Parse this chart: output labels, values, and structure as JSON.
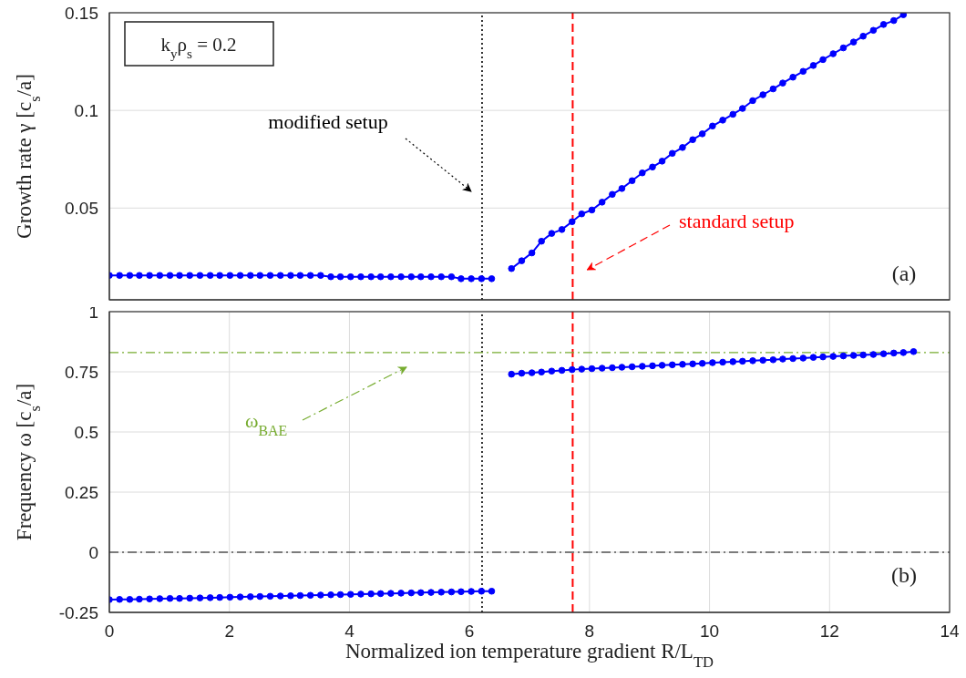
{
  "chart_data": [
    {
      "type": "line",
      "ylabel": "Growth rate γ [c$_{s}$/a]",
      "xlim": [
        0,
        14
      ],
      "xticks": [
        0,
        2,
        4,
        6,
        8,
        10,
        12,
        14
      ],
      "ylim": [
        0.003,
        0.15
      ],
      "yticks": [
        0.05,
        0.1,
        0.15
      ],
      "tick_labels": "y",
      "grid": true,
      "marker": "circle",
      "series": [
        {
          "color": "#0000ff",
          "x": [
            0,
            0.17,
            0.34,
            0.5,
            0.67,
            0.84,
            1.01,
            1.17,
            1.34,
            1.51,
            1.68,
            1.84,
            2.01,
            2.18,
            2.35,
            2.51,
            2.68,
            2.85,
            3.02,
            3.18,
            3.35,
            3.52,
            3.69,
            3.85,
            4.02,
            4.19,
            4.36,
            4.52,
            4.69,
            4.86,
            5.03,
            5.19,
            5.36,
            5.53,
            5.7,
            5.86,
            6.03,
            6.2,
            6.37
          ],
          "values": [
            0.0155,
            0.0155,
            0.0155,
            0.0155,
            0.0155,
            0.0155,
            0.0155,
            0.0155,
            0.0155,
            0.0155,
            0.0155,
            0.0155,
            0.0155,
            0.0155,
            0.0155,
            0.0155,
            0.0155,
            0.0155,
            0.0155,
            0.0155,
            0.0155,
            0.0155,
            0.0148,
            0.0148,
            0.0148,
            0.0148,
            0.0148,
            0.0148,
            0.0148,
            0.0148,
            0.0148,
            0.0148,
            0.0148,
            0.0148,
            0.0148,
            0.0138,
            0.0138,
            0.0138,
            0.0138
          ]
        },
        {
          "color": "#0000ff",
          "x": [
            6.7,
            6.87,
            7.04,
            7.2,
            7.37,
            7.54,
            7.71,
            7.87,
            8.04,
            8.21,
            8.38,
            8.54,
            8.71,
            8.88,
            9.05,
            9.21,
            9.38,
            9.55,
            9.72,
            9.88,
            10.05,
            10.22,
            10.39,
            10.55,
            10.72,
            10.89,
            11.06,
            11.22,
            11.39,
            11.56,
            11.73,
            11.89,
            12.06,
            12.23,
            12.4,
            12.56,
            12.73,
            12.9,
            13.07,
            13.23
          ],
          "values": [
            0.019,
            0.023,
            0.027,
            0.033,
            0.037,
            0.039,
            0.043,
            0.047,
            0.049,
            0.053,
            0.057,
            0.06,
            0.064,
            0.068,
            0.071,
            0.074,
            0.078,
            0.081,
            0.085,
            0.088,
            0.092,
            0.095,
            0.098,
            0.101,
            0.105,
            0.108,
            0.111,
            0.114,
            0.117,
            0.12,
            0.123,
            0.126,
            0.129,
            0.132,
            0.135,
            0.138,
            0.141,
            0.144,
            0.146,
            0.149
          ]
        }
      ],
      "ref_lines": [
        {
          "axis": "x",
          "value": 6.21,
          "label": "modified setup",
          "color": "#000000",
          "line_style": "dotted"
        },
        {
          "axis": "x",
          "value": 7.72,
          "label": "standard setup",
          "color": "#ff0000",
          "line_style": "dashed"
        }
      ],
      "annotations": [
        "k$_{y}$ρ$_{s}$ = 0.2",
        "(a)"
      ]
    },
    {
      "type": "line",
      "xlabel": "Normalized ion temperature gradient R/L$_{T}$$_{D}$",
      "ylabel": "Frequency ω [c$_{s}$/a]",
      "xlim": [
        0,
        14
      ],
      "xticks": [
        0,
        2,
        4,
        6,
        8,
        10,
        12,
        14
      ],
      "ylim": [
        -0.25,
        1
      ],
      "yticks": [
        -0.25,
        0,
        0.25,
        0.5,
        0.75,
        1
      ],
      "grid": true,
      "marker": "circle",
      "series": [
        {
          "color": "#0000ff",
          "x": [
            0,
            0.17,
            0.34,
            0.5,
            0.67,
            0.84,
            1.01,
            1.17,
            1.34,
            1.51,
            1.68,
            1.84,
            2.01,
            2.18,
            2.35,
            2.51,
            2.68,
            2.85,
            3.02,
            3.18,
            3.35,
            3.52,
            3.69,
            3.85,
            4.02,
            4.19,
            4.36,
            4.52,
            4.69,
            4.86,
            5.03,
            5.19,
            5.36,
            5.53,
            5.7,
            5.86,
            6.03,
            6.2,
            6.37
          ],
          "values": [
            -0.197,
            -0.196,
            -0.196,
            -0.195,
            -0.194,
            -0.193,
            -0.192,
            -0.192,
            -0.191,
            -0.19,
            -0.189,
            -0.188,
            -0.187,
            -0.186,
            -0.185,
            -0.184,
            -0.183,
            -0.182,
            -0.181,
            -0.18,
            -0.179,
            -0.178,
            -0.177,
            -0.176,
            -0.175,
            -0.174,
            -0.173,
            -0.172,
            -0.171,
            -0.17,
            -0.169,
            -0.168,
            -0.167,
            -0.166,
            -0.165,
            -0.164,
            -0.163,
            -0.162,
            -0.162
          ]
        },
        {
          "color": "#0000ff",
          "x": [
            6.7,
            6.87,
            7.04,
            7.2,
            7.37,
            7.54,
            7.71,
            7.87,
            8.04,
            8.21,
            8.38,
            8.54,
            8.71,
            8.88,
            9.05,
            9.21,
            9.38,
            9.55,
            9.72,
            9.88,
            10.05,
            10.22,
            10.39,
            10.55,
            10.72,
            10.89,
            11.06,
            11.22,
            11.39,
            11.56,
            11.73,
            11.89,
            12.06,
            12.23,
            12.4,
            12.56,
            12.73,
            12.9,
            13.07,
            13.23,
            13.4
          ],
          "values": [
            0.74,
            0.744,
            0.746,
            0.749,
            0.753,
            0.756,
            0.759,
            0.761,
            0.763,
            0.765,
            0.767,
            0.769,
            0.771,
            0.773,
            0.775,
            0.777,
            0.779,
            0.781,
            0.783,
            0.785,
            0.788,
            0.79,
            0.792,
            0.794,
            0.796,
            0.798,
            0.8,
            0.803,
            0.805,
            0.807,
            0.81,
            0.812,
            0.814,
            0.816,
            0.818,
            0.82,
            0.822,
            0.825,
            0.828,
            0.83,
            0.834
          ]
        }
      ],
      "ref_lines": [
        {
          "axis": "x",
          "value": 6.21,
          "color": "#000000",
          "line_style": "dotted"
        },
        {
          "axis": "x",
          "value": 7.72,
          "color": "#ff0000",
          "line_style": "dashed"
        },
        {
          "axis": "y",
          "value": 0.83,
          "label": "ω$_{BAE}$",
          "color": "#77ac30",
          "line_style": "dashdot"
        },
        {
          "axis": "y",
          "value": 0,
          "color": "#555555",
          "line_style": "dashdot"
        }
      ],
      "annotations": [
        "(b)"
      ]
    }
  ]
}
